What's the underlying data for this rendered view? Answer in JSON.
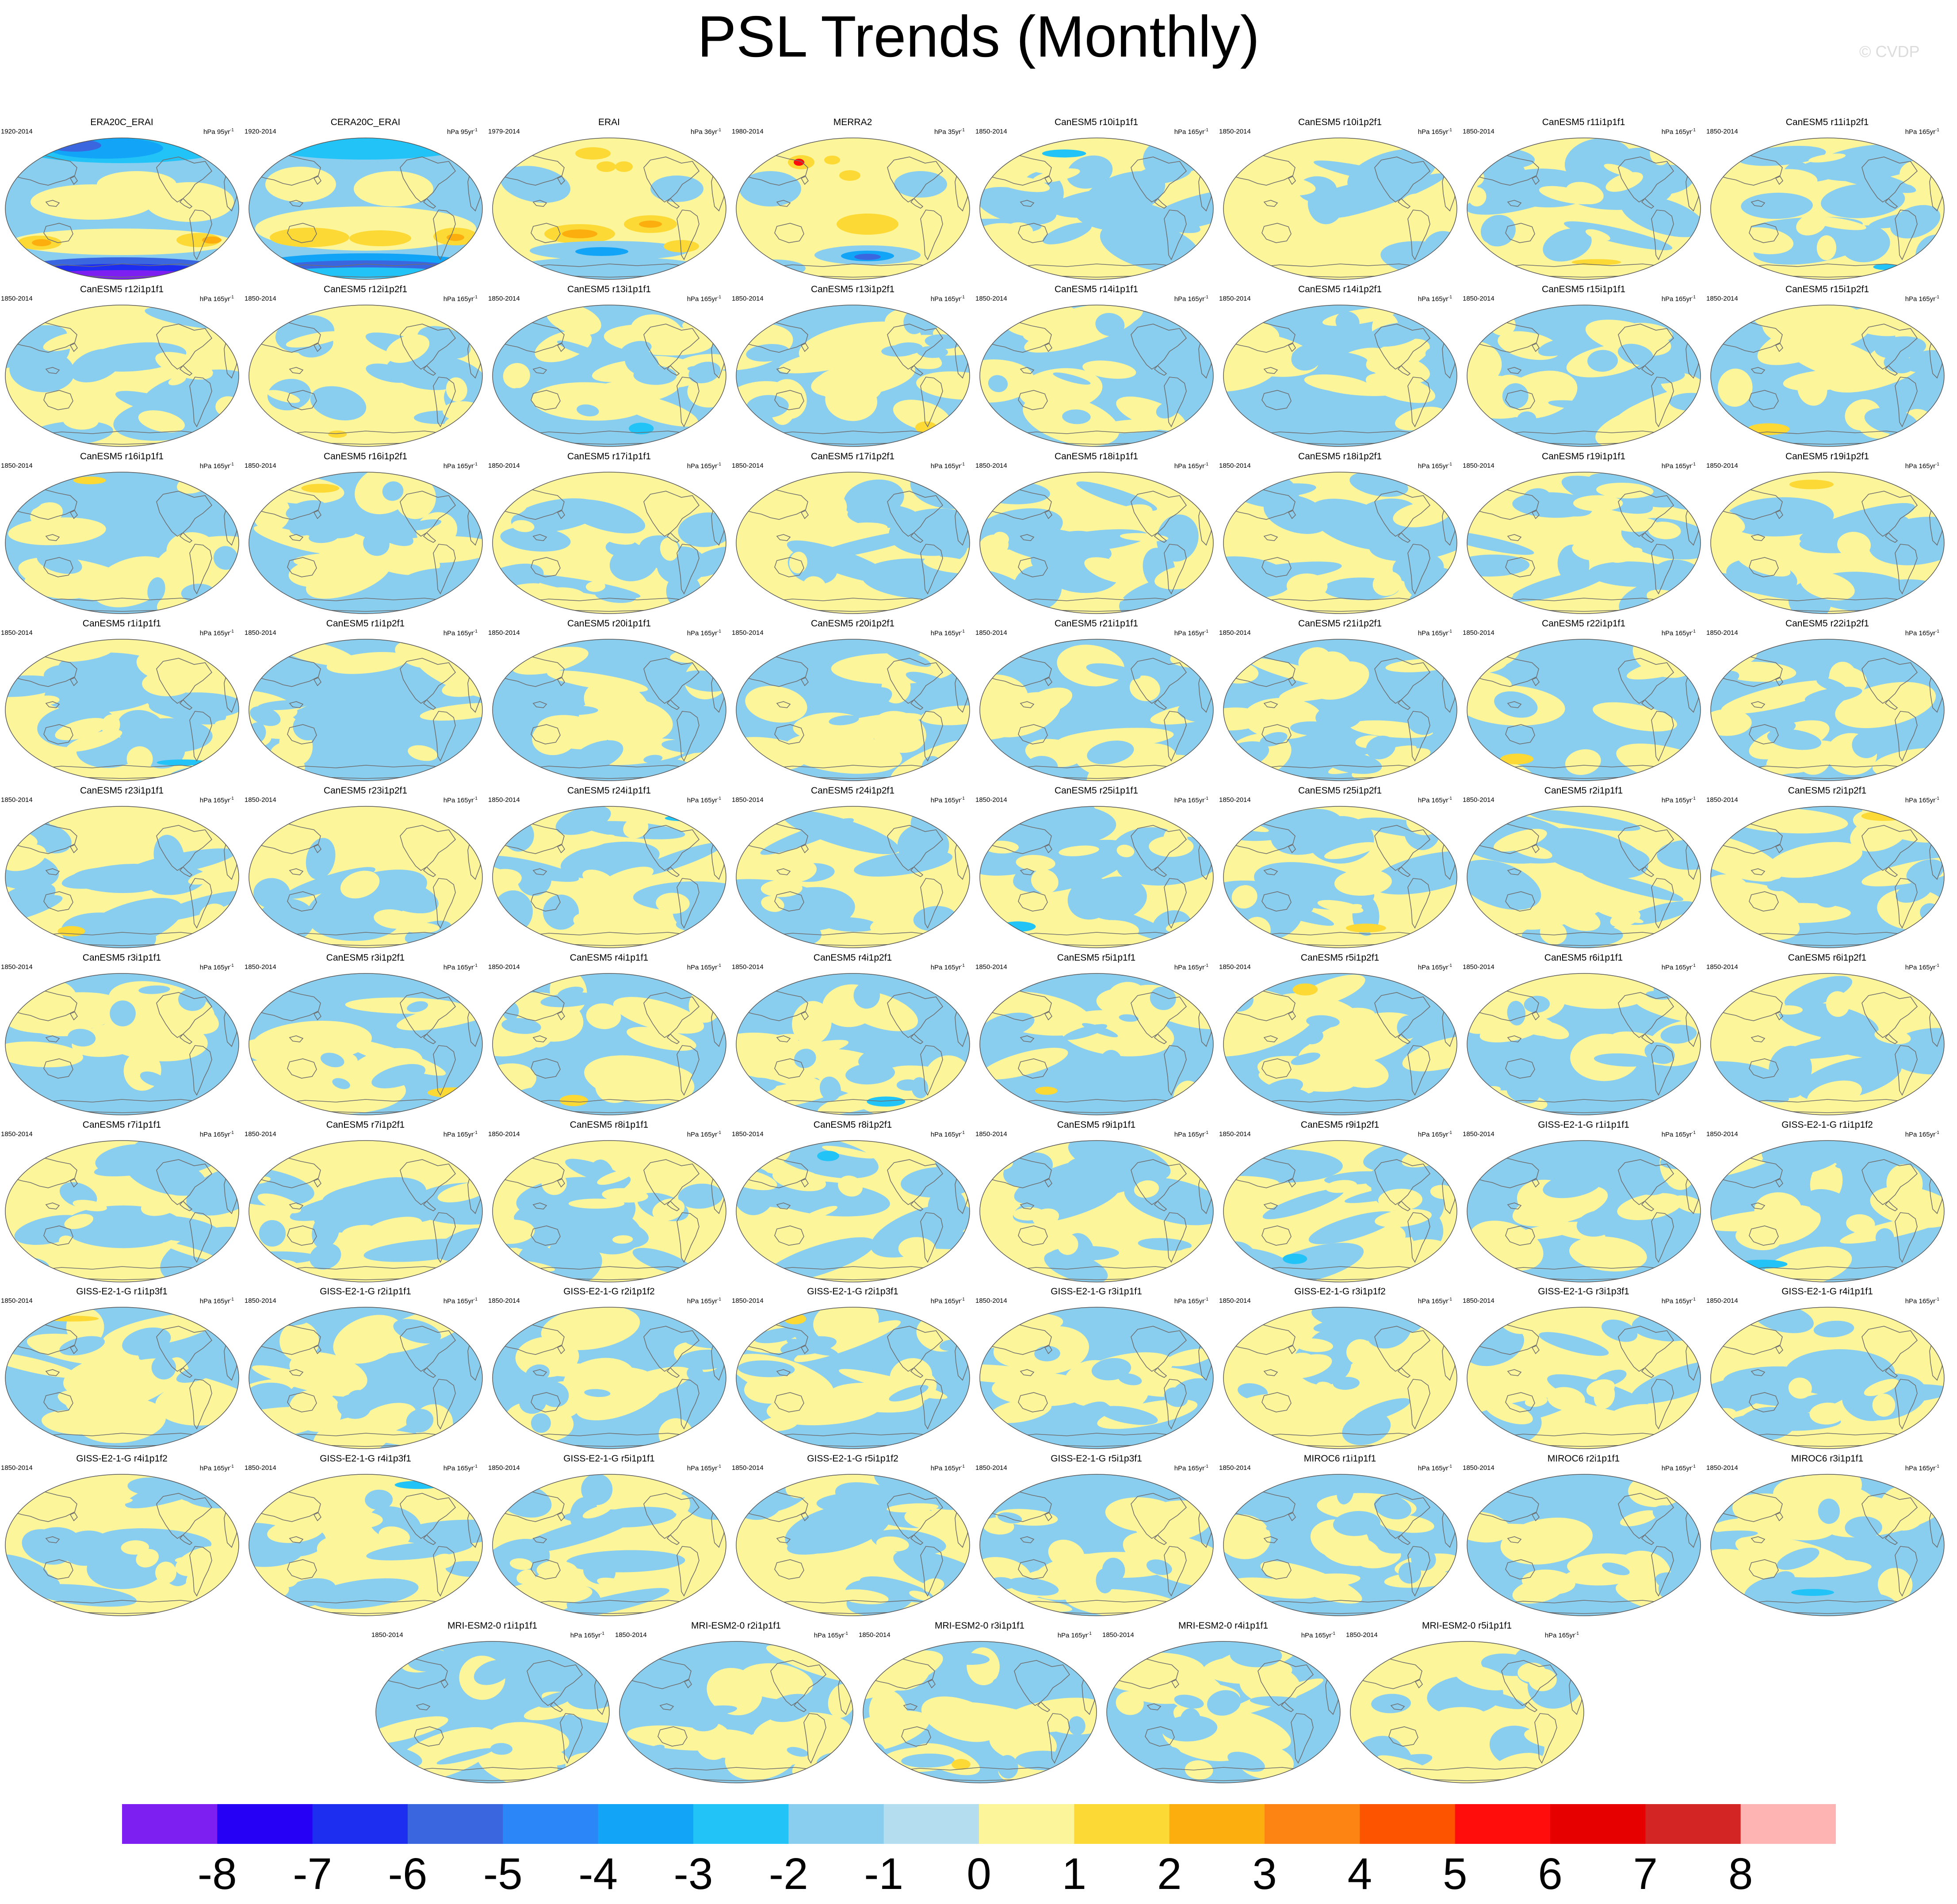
{
  "title": "PSL Trends (Monthly)",
  "credit": "© CVDP",
  "chart_data": {
    "type": "heatmap",
    "title": "PSL Trends (Monthly)",
    "description_units": "hPa per period (trend)",
    "colorbar": {
      "ticks": [
        -8,
        -7,
        -6,
        -5,
        -4,
        -3,
        -2,
        -1,
        0,
        1,
        2,
        3,
        4,
        5,
        6,
        7,
        8
      ],
      "tick_labels": [
        "-8",
        "-7",
        "-6",
        "-5",
        "-4",
        "-3",
        "-2",
        "-1",
        "0",
        "1",
        "2",
        "3",
        "4",
        "5",
        "6",
        "7",
        "8"
      ],
      "colors": [
        "#7c1ff0",
        "#2500f5",
        "#1e2ef0",
        "#3a66e0",
        "#2b86f7",
        "#12a5f7",
        "#22c3f7",
        "#89cdef",
        "#b4def0",
        "#fdf59a",
        "#fdd935",
        "#fcae0f",
        "#fd8312",
        "#fd5400",
        "#ff0d0d",
        "#e60000",
        "#d42525",
        "#ffb4b4"
      ]
    },
    "panels": [
      {
        "name": "ERA20C_ERAI",
        "period": "1920-2014",
        "units": "hPa 95yr",
        "pattern": "era20c"
      },
      {
        "name": "CERA20C_ERAI",
        "period": "1920-2014",
        "units": "hPa 95yr",
        "pattern": "cera20c"
      },
      {
        "name": "ERAI",
        "period": "1979-2014",
        "units": "hPa 36yr",
        "pattern": "erai"
      },
      {
        "name": "MERRA2",
        "period": "1980-2014",
        "units": "hPa 35yr",
        "pattern": "merra2"
      },
      {
        "name": "CanESM5 r10i1p1f1",
        "period": "1850-2014",
        "units": "hPa 165yr",
        "pattern": "model"
      },
      {
        "name": "CanESM5 r10i1p2f1",
        "period": "1850-2014",
        "units": "hPa 165yr",
        "pattern": "model"
      },
      {
        "name": "CanESM5 r11i1p1f1",
        "period": "1850-2014",
        "units": "hPa 165yr",
        "pattern": "model"
      },
      {
        "name": "CanESM5 r11i1p2f1",
        "period": "1850-2014",
        "units": "hPa 165yr",
        "pattern": "model"
      },
      {
        "name": "CanESM5 r12i1p1f1",
        "period": "1850-2014",
        "units": "hPa 165yr",
        "pattern": "model"
      },
      {
        "name": "CanESM5 r12i1p2f1",
        "period": "1850-2014",
        "units": "hPa 165yr",
        "pattern": "model"
      },
      {
        "name": "CanESM5 r13i1p1f1",
        "period": "1850-2014",
        "units": "hPa 165yr",
        "pattern": "model"
      },
      {
        "name": "CanESM5 r13i1p2f1",
        "period": "1850-2014",
        "units": "hPa 165yr",
        "pattern": "model"
      },
      {
        "name": "CanESM5 r14i1p1f1",
        "period": "1850-2014",
        "units": "hPa 165yr",
        "pattern": "model"
      },
      {
        "name": "CanESM5 r14i1p2f1",
        "period": "1850-2014",
        "units": "hPa 165yr",
        "pattern": "model"
      },
      {
        "name": "CanESM5 r15i1p1f1",
        "period": "1850-2014",
        "units": "hPa 165yr",
        "pattern": "model"
      },
      {
        "name": "CanESM5 r15i1p2f1",
        "period": "1850-2014",
        "units": "hPa 165yr",
        "pattern": "model"
      },
      {
        "name": "CanESM5 r16i1p1f1",
        "period": "1850-2014",
        "units": "hPa 165yr",
        "pattern": "model"
      },
      {
        "name": "CanESM5 r16i1p2f1",
        "period": "1850-2014",
        "units": "hPa 165yr",
        "pattern": "model"
      },
      {
        "name": "CanESM5 r17i1p1f1",
        "period": "1850-2014",
        "units": "hPa 165yr",
        "pattern": "model"
      },
      {
        "name": "CanESM5 r17i1p2f1",
        "period": "1850-2014",
        "units": "hPa 165yr",
        "pattern": "model"
      },
      {
        "name": "CanESM5 r18i1p1f1",
        "period": "1850-2014",
        "units": "hPa 165yr",
        "pattern": "model"
      },
      {
        "name": "CanESM5 r18i1p2f1",
        "period": "1850-2014",
        "units": "hPa 165yr",
        "pattern": "model"
      },
      {
        "name": "CanESM5 r19i1p1f1",
        "period": "1850-2014",
        "units": "hPa 165yr",
        "pattern": "model"
      },
      {
        "name": "CanESM5 r19i1p2f1",
        "period": "1850-2014",
        "units": "hPa 165yr",
        "pattern": "model"
      },
      {
        "name": "CanESM5 r1i1p1f1",
        "period": "1850-2014",
        "units": "hPa 165yr",
        "pattern": "model"
      },
      {
        "name": "CanESM5 r1i1p2f1",
        "period": "1850-2014",
        "units": "hPa 165yr",
        "pattern": "model"
      },
      {
        "name": "CanESM5 r20i1p1f1",
        "period": "1850-2014",
        "units": "hPa 165yr",
        "pattern": "model"
      },
      {
        "name": "CanESM5 r20i1p2f1",
        "period": "1850-2014",
        "units": "hPa 165yr",
        "pattern": "model"
      },
      {
        "name": "CanESM5 r21i1p1f1",
        "period": "1850-2014",
        "units": "hPa 165yr",
        "pattern": "model"
      },
      {
        "name": "CanESM5 r21i1p2f1",
        "period": "1850-2014",
        "units": "hPa 165yr",
        "pattern": "model"
      },
      {
        "name": "CanESM5 r22i1p1f1",
        "period": "1850-2014",
        "units": "hPa 165yr",
        "pattern": "model"
      },
      {
        "name": "CanESM5 r22i1p2f1",
        "period": "1850-2014",
        "units": "hPa 165yr",
        "pattern": "model"
      },
      {
        "name": "CanESM5 r23i1p1f1",
        "period": "1850-2014",
        "units": "hPa 165yr",
        "pattern": "model"
      },
      {
        "name": "CanESM5 r23i1p2f1",
        "period": "1850-2014",
        "units": "hPa 165yr",
        "pattern": "model"
      },
      {
        "name": "CanESM5 r24i1p1f1",
        "period": "1850-2014",
        "units": "hPa 165yr",
        "pattern": "model"
      },
      {
        "name": "CanESM5 r24i1p2f1",
        "period": "1850-2014",
        "units": "hPa 165yr",
        "pattern": "model"
      },
      {
        "name": "CanESM5 r25i1p1f1",
        "period": "1850-2014",
        "units": "hPa 165yr",
        "pattern": "model"
      },
      {
        "name": "CanESM5 r25i1p2f1",
        "period": "1850-2014",
        "units": "hPa 165yr",
        "pattern": "model"
      },
      {
        "name": "CanESM5 r2i1p1f1",
        "period": "1850-2014",
        "units": "hPa 165yr",
        "pattern": "model"
      },
      {
        "name": "CanESM5 r2i1p2f1",
        "period": "1850-2014",
        "units": "hPa 165yr",
        "pattern": "model"
      },
      {
        "name": "CanESM5 r3i1p1f1",
        "period": "1850-2014",
        "units": "hPa 165yr",
        "pattern": "model"
      },
      {
        "name": "CanESM5 r3i1p2f1",
        "period": "1850-2014",
        "units": "hPa 165yr",
        "pattern": "model"
      },
      {
        "name": "CanESM5 r4i1p1f1",
        "period": "1850-2014",
        "units": "hPa 165yr",
        "pattern": "model"
      },
      {
        "name": "CanESM5 r4i1p2f1",
        "period": "1850-2014",
        "units": "hPa 165yr",
        "pattern": "model"
      },
      {
        "name": "CanESM5 r5i1p1f1",
        "period": "1850-2014",
        "units": "hPa 165yr",
        "pattern": "model"
      },
      {
        "name": "CanESM5 r5i1p2f1",
        "period": "1850-2014",
        "units": "hPa 165yr",
        "pattern": "model"
      },
      {
        "name": "CanESM5 r6i1p1f1",
        "period": "1850-2014",
        "units": "hPa 165yr",
        "pattern": "model"
      },
      {
        "name": "CanESM5 r6i1p2f1",
        "period": "1850-2014",
        "units": "hPa 165yr",
        "pattern": "model"
      },
      {
        "name": "CanESM5 r7i1p1f1",
        "period": "1850-2014",
        "units": "hPa 165yr",
        "pattern": "model"
      },
      {
        "name": "CanESM5 r7i1p2f1",
        "period": "1850-2014",
        "units": "hPa 165yr",
        "pattern": "model"
      },
      {
        "name": "CanESM5 r8i1p1f1",
        "period": "1850-2014",
        "units": "hPa 165yr",
        "pattern": "model"
      },
      {
        "name": "CanESM5 r8i1p2f1",
        "period": "1850-2014",
        "units": "hPa 165yr",
        "pattern": "model"
      },
      {
        "name": "CanESM5 r9i1p1f1",
        "period": "1850-2014",
        "units": "hPa 165yr",
        "pattern": "model"
      },
      {
        "name": "CanESM5 r9i1p2f1",
        "period": "1850-2014",
        "units": "hPa 165yr",
        "pattern": "model"
      },
      {
        "name": "GISS-E2-1-G r1i1p1f1",
        "period": "1850-2014",
        "units": "hPa 165yr",
        "pattern": "model"
      },
      {
        "name": "GISS-E2-1-G r1i1p1f2",
        "period": "1850-2014",
        "units": "hPa 165yr",
        "pattern": "model"
      },
      {
        "name": "GISS-E2-1-G r1i1p3f1",
        "period": "1850-2014",
        "units": "hPa 165yr",
        "pattern": "model"
      },
      {
        "name": "GISS-E2-1-G r2i1p1f1",
        "period": "1850-2014",
        "units": "hPa 165yr",
        "pattern": "model"
      },
      {
        "name": "GISS-E2-1-G r2i1p1f2",
        "period": "1850-2014",
        "units": "hPa 165yr",
        "pattern": "model"
      },
      {
        "name": "GISS-E2-1-G r2i1p3f1",
        "period": "1850-2014",
        "units": "hPa 165yr",
        "pattern": "model"
      },
      {
        "name": "GISS-E2-1-G r3i1p1f1",
        "period": "1850-2014",
        "units": "hPa 165yr",
        "pattern": "model"
      },
      {
        "name": "GISS-E2-1-G r3i1p1f2",
        "period": "1850-2014",
        "units": "hPa 165yr",
        "pattern": "model"
      },
      {
        "name": "GISS-E2-1-G r3i1p3f1",
        "period": "1850-2014",
        "units": "hPa 165yr",
        "pattern": "model"
      },
      {
        "name": "GISS-E2-1-G r4i1p1f1",
        "period": "1850-2014",
        "units": "hPa 165yr",
        "pattern": "model"
      },
      {
        "name": "GISS-E2-1-G r4i1p1f2",
        "period": "1850-2014",
        "units": "hPa 165yr",
        "pattern": "model"
      },
      {
        "name": "GISS-E2-1-G r4i1p3f1",
        "period": "1850-2014",
        "units": "hPa 165yr",
        "pattern": "model"
      },
      {
        "name": "GISS-E2-1-G r5i1p1f1",
        "period": "1850-2014",
        "units": "hPa 165yr",
        "pattern": "model"
      },
      {
        "name": "GISS-E2-1-G r5i1p1f2",
        "period": "1850-2014",
        "units": "hPa 165yr",
        "pattern": "model"
      },
      {
        "name": "GISS-E2-1-G r5i1p3f1",
        "period": "1850-2014",
        "units": "hPa 165yr",
        "pattern": "model"
      },
      {
        "name": "MIROC6 r1i1p1f1",
        "period": "1850-2014",
        "units": "hPa 165yr",
        "pattern": "model"
      },
      {
        "name": "MIROC6 r2i1p1f1",
        "period": "1850-2014",
        "units": "hPa 165yr",
        "pattern": "model"
      },
      {
        "name": "MIROC6 r3i1p1f1",
        "period": "1850-2014",
        "units": "hPa 165yr",
        "pattern": "model"
      },
      {
        "name": "MRI-ESM2-0 r1i1p1f1",
        "period": "1850-2014",
        "units": "hPa 165yr",
        "pattern": "model"
      },
      {
        "name": "MRI-ESM2-0 r2i1p1f1",
        "period": "1850-2014",
        "units": "hPa 165yr",
        "pattern": "model"
      },
      {
        "name": "MRI-ESM2-0 r3i1p1f1",
        "period": "1850-2014",
        "units": "hPa 165yr",
        "pattern": "model"
      },
      {
        "name": "MRI-ESM2-0 r4i1p1f1",
        "period": "1850-2014",
        "units": "hPa 165yr",
        "pattern": "model"
      },
      {
        "name": "MRI-ESM2-0 r5i1p1f1",
        "period": "1850-2014",
        "units": "hPa 165yr",
        "pattern": "model"
      }
    ]
  }
}
